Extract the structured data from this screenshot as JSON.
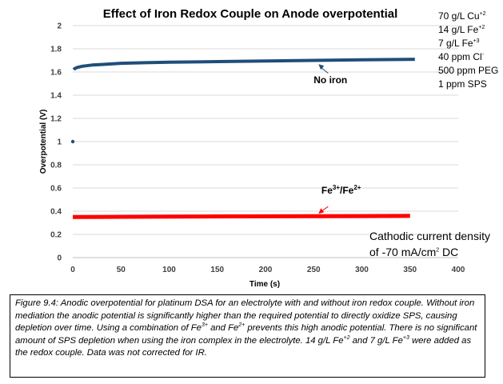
{
  "chart_data": {
    "type": "line",
    "title": "Effect of Iron Redox Couple on Anode overpotential",
    "xlabel": "Time (s)",
    "ylabel": "Overpotential (V)",
    "xlim": [
      0,
      400
    ],
    "ylim": [
      0,
      2
    ],
    "xticks": [
      "0",
      "50",
      "100",
      "150",
      "200",
      "250",
      "300",
      "350",
      "400"
    ],
    "yticks": [
      "0",
      "0.2",
      "0.4",
      "0.6",
      "0.8",
      "1",
      "1.2",
      "1.4",
      "1.6",
      "1.8",
      "2"
    ],
    "grid": "horizontal",
    "series": [
      {
        "name": "No iron",
        "color": "#1f4e79",
        "x": [
          0,
          1,
          2,
          5,
          10,
          20,
          30,
          50,
          75,
          100,
          150,
          200,
          250,
          300,
          355
        ],
        "y": [
          1.0,
          1.62,
          1.63,
          1.64,
          1.65,
          1.66,
          1.665,
          1.675,
          1.68,
          1.685,
          1.69,
          1.695,
          1.7,
          1.705,
          1.71
        ]
      },
      {
        "name": "Fe³⁺/Fe²⁺",
        "color": "#ff0000",
        "x": [
          0,
          50,
          100,
          150,
          200,
          250,
          300,
          350
        ],
        "y": [
          0.35,
          0.352,
          0.353,
          0.355,
          0.356,
          0.357,
          0.358,
          0.36
        ]
      }
    ],
    "annotations": [
      {
        "text": "No iron",
        "series": 0
      },
      {
        "text_main": "Fe",
        "sup1": "3+",
        "mid": "/Fe",
        "sup2": "2+",
        "series": 1
      }
    ]
  },
  "side_notes": {
    "l1_main": "70 g/L Cu",
    "l1_sup": "+2",
    "l2_main": "14 g/L Fe",
    "l2_sup": "+2",
    "l3_main": "7 g/L Fe",
    "l3_sup": "+3",
    "l4_main": "40 ppm Cl",
    "l4_sup": "-",
    "l5": "500 ppm PEG",
    "l6": "1 ppm SPS"
  },
  "cathodic": {
    "line1": "Cathodic current density",
    "line2_main": "of -70 mA/cm",
    "line2_sup": "2",
    "line2_end": " DC"
  },
  "caption": {
    "p1": "Figure 9.4: Anodic overpotential for platinum DSA for an electrolyte with and without iron redox couple. Without iron mediation the anodic potential is significantly higher than the required potential to directly oxidize SPS, causing depletion over time. Using a combination of Fe",
    "s1": "3+",
    "p2": " and Fe",
    "s2": "2+",
    "p3": " prevents this high anodic potential. There is no significant amount of SPS depletion when using the iron complex in the electrolyte. 14 g/L Fe",
    "s3": "+2",
    "p4": " and 7 g/L Fe",
    "s4": "+3",
    "p5": " were added as the redox couple. Data was not corrected for IR."
  }
}
